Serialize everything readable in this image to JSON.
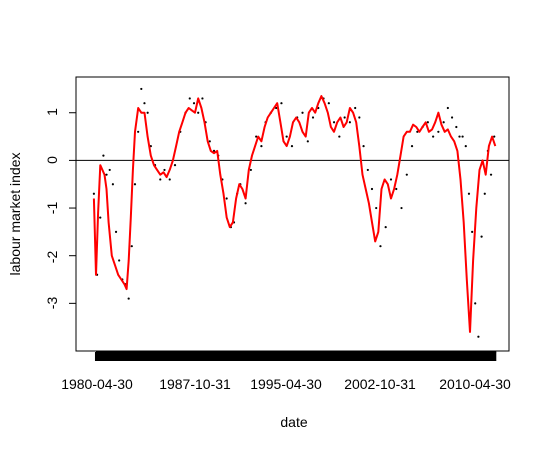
{
  "chart_data": {
    "type": "line",
    "title": "",
    "xlabel": "date",
    "ylabel": "labour market index",
    "x_tick_labels": [
      "1980-04-30",
      "1987-10-31",
      "1995-04-30",
      "2002-10-31",
      "2010-04-30"
    ],
    "y_tick_labels": [
      "-3",
      "-2",
      "-1",
      "0",
      "1"
    ],
    "y_ticks": [
      -3,
      -2,
      -1,
      0,
      1
    ],
    "ylim": [
      -4.0,
      1.75
    ],
    "xlim": [
      "1978-10-01",
      "2013-01-01"
    ],
    "hline": 0,
    "legend": "none",
    "grid": false,
    "colors": {
      "smoothed_line": "#ff0000",
      "points": "#000000",
      "zero_line": "#000000",
      "axes": "#000000"
    },
    "series": [
      {
        "style": "points",
        "x": [
          "1980-03-01",
          "1980-06-01",
          "1980-09-01",
          "1980-12-01",
          "1981-03-01",
          "1981-06-01",
          "1981-09-01",
          "1981-12-01",
          "1982-03-01",
          "1982-06-01",
          "1982-09-01",
          "1982-12-01",
          "1983-03-01",
          "1983-06-01",
          "1983-09-01",
          "1983-12-01",
          "1984-03-01",
          "1984-06-01",
          "1984-09-01",
          "1985-01-01",
          "1985-06-01",
          "1985-10-01",
          "1986-03-01",
          "1986-08-01",
          "1987-01-01",
          "1987-06-01",
          "1987-10-01",
          "1988-02-01",
          "1988-06-01",
          "1988-10-01",
          "1989-01-01",
          "1989-05-01",
          "1989-09-01",
          "1990-01-01",
          "1990-05-01",
          "1990-09-01",
          "1991-01-01",
          "1991-04-01",
          "1991-07-01",
          "1991-10-01",
          "1992-03-01",
          "1992-08-01",
          "1993-01-01",
          "1993-06-01",
          "1993-10-01",
          "1994-03-01",
          "1994-08-01",
          "1995-01-01",
          "1995-06-01",
          "1995-11-01",
          "1996-04-01",
          "1996-09-01",
          "1997-02-01",
          "1997-07-01",
          "1997-12-01",
          "1998-05-01",
          "1998-10-01",
          "1999-03-01",
          "1999-08-01",
          "2000-01-01",
          "2000-06-01",
          "2000-11-01",
          "2001-03-01",
          "2001-07-01",
          "2001-11-01",
          "2002-03-01",
          "2002-07-01",
          "2002-11-01",
          "2003-04-01",
          "2003-09-01",
          "2004-02-01",
          "2004-07-01",
          "2004-12-01",
          "2005-05-01",
          "2005-10-01",
          "2006-03-01",
          "2006-08-01",
          "2007-01-01",
          "2007-06-01",
          "2007-11-01",
          "2008-03-01",
          "2008-07-01",
          "2008-11-01",
          "2009-02-01",
          "2009-05-01",
          "2009-08-01",
          "2009-11-01",
          "2010-02-01",
          "2010-05-01",
          "2010-08-01",
          "2010-11-01",
          "2011-02-01",
          "2011-05-01",
          "2011-08-01",
          "2011-11-01"
        ],
        "y": [
          -0.7,
          -2.4,
          -1.2,
          0.1,
          -0.3,
          -0.2,
          -0.5,
          -1.5,
          -2.1,
          -2.5,
          -2.6,
          -2.9,
          -1.8,
          -0.5,
          0.6,
          1.5,
          1.2,
          1.0,
          0.3,
          -0.1,
          -0.4,
          -0.2,
          -0.4,
          -0.1,
          0.6,
          1.0,
          1.3,
          1.2,
          1.0,
          1.3,
          0.8,
          0.4,
          0.2,
          0.1,
          -0.4,
          -0.8,
          -1.4,
          -1.3,
          -0.7,
          -0.5,
          -0.9,
          -0.2,
          0.5,
          0.3,
          0.8,
          1.0,
          1.1,
          1.2,
          0.5,
          0.3,
          0.9,
          1.0,
          0.4,
          0.9,
          1.1,
          1.3,
          1.2,
          0.8,
          0.5,
          0.9,
          0.8,
          1.1,
          0.9,
          0.3,
          -0.2,
          -0.6,
          -1.0,
          -1.8,
          -1.4,
          -0.4,
          -0.6,
          -1.0,
          -0.3,
          0.3,
          0.6,
          0.7,
          0.8,
          0.5,
          0.6,
          0.8,
          1.1,
          0.9,
          0.7,
          0.5,
          0.5,
          0.3,
          -0.7,
          -1.5,
          -3.0,
          -3.7,
          -1.6,
          -0.7,
          0.2,
          -0.3,
          0.5
        ]
      },
      {
        "style": "line",
        "x": [
          "1980-03-01",
          "1980-05-01",
          "1980-07-01",
          "1980-09-01",
          "1980-11-01",
          "1981-01-01",
          "1981-03-01",
          "1981-05-01",
          "1981-08-01",
          "1981-11-01",
          "1982-02-01",
          "1982-05-01",
          "1982-08-01",
          "1982-10-01",
          "1982-12-01",
          "1983-02-01",
          "1983-04-01",
          "1983-06-01",
          "1983-09-01",
          "1983-12-01",
          "1984-03-01",
          "1984-06-01",
          "1984-09-01",
          "1984-12-01",
          "1985-03-01",
          "1985-06-01",
          "1985-09-01",
          "1985-12-01",
          "1986-03-01",
          "1986-06-01",
          "1986-09-01",
          "1986-12-01",
          "1987-03-01",
          "1987-06-01",
          "1987-09-01",
          "1987-12-01",
          "1988-03-01",
          "1988-06-01",
          "1988-09-01",
          "1988-12-01",
          "1989-03-01",
          "1989-06-01",
          "1989-09-01",
          "1989-12-01",
          "1990-03-01",
          "1990-06-01",
          "1990-09-01",
          "1990-12-01",
          "1991-03-01",
          "1991-06-01",
          "1991-09-01",
          "1991-12-01",
          "1992-03-01",
          "1992-06-01",
          "1992-09-01",
          "1992-12-01",
          "1993-03-01",
          "1993-06-01",
          "1993-09-01",
          "1993-12-01",
          "1994-03-01",
          "1994-06-01",
          "1994-09-01",
          "1994-12-01",
          "1995-03-01",
          "1995-06-01",
          "1995-09-01",
          "1995-12-01",
          "1996-03-01",
          "1996-06-01",
          "1996-09-01",
          "1996-12-01",
          "1997-03-01",
          "1997-06-01",
          "1997-09-01",
          "1997-12-01",
          "1998-03-01",
          "1998-06-01",
          "1998-09-01",
          "1998-12-01",
          "1999-03-01",
          "1999-06-01",
          "1999-09-01",
          "1999-12-01",
          "2000-03-01",
          "2000-06-01",
          "2000-09-01",
          "2000-12-01",
          "2001-03-01",
          "2001-06-01",
          "2001-09-01",
          "2001-12-01",
          "2002-03-01",
          "2002-06-01",
          "2002-09-01",
          "2002-12-01",
          "2003-03-01",
          "2003-06-01",
          "2003-09-01",
          "2003-12-01",
          "2004-03-01",
          "2004-06-01",
          "2004-09-01",
          "2004-12-01",
          "2005-03-01",
          "2005-06-01",
          "2005-09-01",
          "2005-12-01",
          "2006-03-01",
          "2006-06-01",
          "2006-09-01",
          "2006-12-01",
          "2007-03-01",
          "2007-06-01",
          "2007-09-01",
          "2007-12-01",
          "2008-03-01",
          "2008-06-01",
          "2008-09-01",
          "2008-12-01",
          "2009-03-01",
          "2009-06-01",
          "2009-09-01",
          "2009-12-01",
          "2010-03-01",
          "2010-06-01",
          "2010-09-01",
          "2010-12-01",
          "2011-03-01",
          "2011-06-01",
          "2011-09-01",
          "2011-12-01"
        ],
        "y": [
          -0.8,
          -2.4,
          -1.1,
          -0.1,
          -0.2,
          -0.3,
          -0.6,
          -1.3,
          -2.0,
          -2.2,
          -2.4,
          -2.5,
          -2.6,
          -2.7,
          -2.1,
          -1.2,
          -0.2,
          0.6,
          1.1,
          1.0,
          1.0,
          0.5,
          0.1,
          -0.1,
          -0.2,
          -0.3,
          -0.25,
          -0.35,
          -0.2,
          0.0,
          0.3,
          0.6,
          0.8,
          1.0,
          1.1,
          1.05,
          1.0,
          1.3,
          1.1,
          0.8,
          0.4,
          0.2,
          0.15,
          0.2,
          -0.3,
          -0.7,
          -1.2,
          -1.4,
          -1.3,
          -0.8,
          -0.5,
          -0.6,
          -0.8,
          -0.2,
          0.1,
          0.3,
          0.5,
          0.4,
          0.7,
          0.9,
          1.0,
          1.1,
          1.2,
          0.8,
          0.4,
          0.3,
          0.5,
          0.8,
          0.9,
          0.8,
          0.6,
          0.5,
          1.0,
          1.1,
          1.0,
          1.2,
          1.35,
          1.2,
          1.0,
          0.7,
          0.6,
          0.8,
          0.9,
          0.7,
          0.8,
          1.1,
          1.0,
          0.8,
          0.3,
          -0.3,
          -0.6,
          -0.9,
          -1.3,
          -1.7,
          -1.5,
          -0.6,
          -0.4,
          -0.5,
          -0.8,
          -0.6,
          -0.3,
          0.1,
          0.5,
          0.6,
          0.6,
          0.75,
          0.7,
          0.6,
          0.7,
          0.8,
          0.6,
          0.65,
          0.8,
          1.0,
          0.75,
          0.6,
          0.65,
          0.5,
          0.4,
          0.2,
          -0.4,
          -1.3,
          -2.5,
          -3.6,
          -2.1,
          -1.0,
          -0.2,
          0.0,
          -0.3,
          0.3,
          0.5,
          0.3
        ]
      }
    ]
  }
}
